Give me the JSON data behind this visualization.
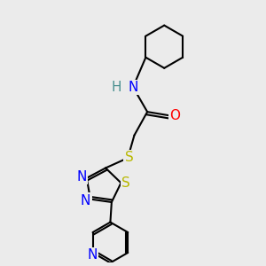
{
  "background_color": "#ebebeb",
  "bond_color": "#000000",
  "bond_width": 1.5,
  "atom_colors": {
    "N": "#0000ff",
    "O": "#ff0000",
    "S": "#b8b800",
    "NH_H": "#4a9090",
    "NH_N": "#0000ff"
  },
  "font_size": 11
}
